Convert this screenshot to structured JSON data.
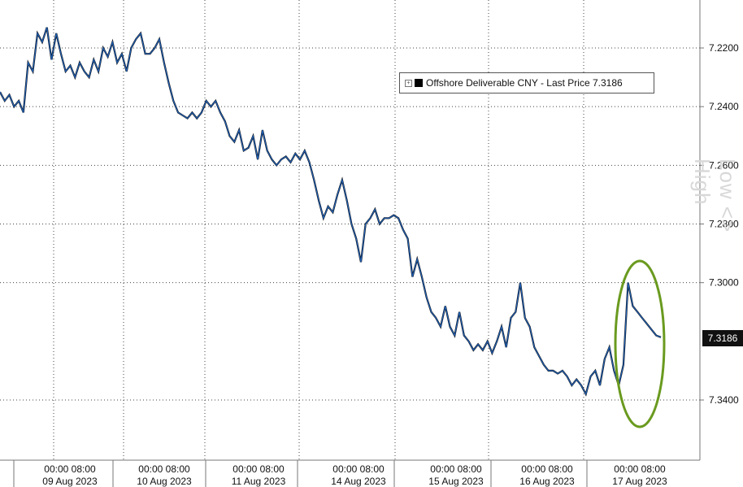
{
  "chart_data": {
    "type": "line",
    "title": "",
    "legend": {
      "label": "Offshore Deliverable CNY - Last Price 7.3186",
      "placement": "top-right"
    },
    "y_axis": {
      "side": "right",
      "inverted": true,
      "ylim": [
        7.2,
        7.36
      ],
      "ticks": [
        "7.2200",
        "7.2400",
        "7.2600",
        "7.2800",
        "7.3000",
        "7.3400"
      ]
    },
    "last_price_label": "7.3186",
    "x_axis": {
      "time_labels": [
        "00:00 08:00",
        "00:00 08:00",
        "00:00 08:00",
        "00:00 08:00",
        "00:00 08:00",
        "00:00 08:00",
        "00:00 08:00"
      ],
      "date_labels": [
        "09 Aug 2023",
        "10 Aug 2023",
        "11 Aug 2023",
        "14 Aug 2023",
        "15 Aug 2023",
        "16 Aug 2023",
        "17 Aug 2023"
      ]
    },
    "watermark": "Low <> High",
    "series": [
      {
        "name": "Offshore Deliverable CNY",
        "color": "#1f5fb4",
        "points": [
          [
            0.0,
            7.235
          ],
          [
            0.03,
            7.238
          ],
          [
            0.06,
            7.236
          ],
          [
            0.09,
            7.24
          ],
          [
            0.12,
            7.238
          ],
          [
            0.15,
            7.242
          ],
          [
            0.18,
            7.225
          ],
          [
            0.21,
            7.228
          ],
          [
            0.24,
            7.215
          ],
          [
            0.27,
            7.218
          ],
          [
            0.3,
            7.213
          ],
          [
            0.33,
            7.224
          ],
          [
            0.36,
            7.215
          ],
          [
            0.39,
            7.222
          ],
          [
            0.42,
            7.228
          ],
          [
            0.45,
            7.226
          ],
          [
            0.48,
            7.23
          ],
          [
            0.51,
            7.225
          ],
          [
            0.54,
            7.228
          ],
          [
            0.57,
            7.23
          ],
          [
            0.6,
            7.224
          ],
          [
            0.63,
            7.228
          ],
          [
            0.66,
            7.22
          ],
          [
            0.69,
            7.223
          ],
          [
            0.72,
            7.218
          ],
          [
            0.75,
            7.225
          ],
          [
            0.78,
            7.222
          ],
          [
            0.81,
            7.228
          ],
          [
            0.84,
            7.22
          ],
          [
            0.87,
            7.217
          ],
          [
            0.9,
            7.215
          ],
          [
            0.93,
            7.222
          ],
          [
            0.96,
            7.222
          ],
          [
            0.99,
            7.22
          ],
          [
            1.02,
            7.217
          ],
          [
            1.05,
            7.225
          ],
          [
            1.08,
            7.232
          ],
          [
            1.11,
            7.238
          ],
          [
            1.14,
            7.242
          ],
          [
            1.17,
            7.243
          ],
          [
            1.2,
            7.244
          ],
          [
            1.23,
            7.242
          ],
          [
            1.26,
            7.244
          ],
          [
            1.29,
            7.242
          ],
          [
            1.32,
            7.238
          ],
          [
            1.35,
            7.24
          ],
          [
            1.38,
            7.238
          ],
          [
            1.41,
            7.242
          ],
          [
            1.44,
            7.245
          ],
          [
            1.47,
            7.25
          ],
          [
            1.5,
            7.252
          ],
          [
            1.53,
            7.248
          ],
          [
            1.56,
            7.255
          ],
          [
            1.59,
            7.254
          ],
          [
            1.62,
            7.25
          ],
          [
            1.65,
            7.258
          ],
          [
            1.68,
            7.248
          ],
          [
            1.71,
            7.255
          ],
          [
            1.74,
            7.258
          ],
          [
            1.77,
            7.26
          ],
          [
            1.8,
            7.258
          ],
          [
            1.83,
            7.257
          ],
          [
            1.86,
            7.259
          ],
          [
            1.89,
            7.256
          ],
          [
            1.92,
            7.258
          ],
          [
            1.95,
            7.255
          ],
          [
            1.98,
            7.259
          ],
          [
            2.01,
            7.265
          ],
          [
            2.04,
            7.272
          ],
          [
            2.07,
            7.278
          ],
          [
            2.1,
            7.274
          ],
          [
            2.13,
            7.276
          ],
          [
            2.16,
            7.27
          ],
          [
            2.19,
            7.265
          ],
          [
            2.22,
            7.272
          ],
          [
            2.25,
            7.28
          ],
          [
            2.28,
            7.285
          ],
          [
            2.31,
            7.293
          ],
          [
            2.34,
            7.28
          ],
          [
            2.37,
            7.278
          ],
          [
            2.4,
            7.275
          ],
          [
            2.43,
            7.28
          ],
          [
            2.46,
            7.278
          ],
          [
            2.49,
            7.278
          ],
          [
            2.52,
            7.277
          ],
          [
            2.55,
            7.278
          ],
          [
            2.58,
            7.282
          ],
          [
            2.61,
            7.285
          ],
          [
            2.64,
            7.298
          ],
          [
            2.67,
            7.292
          ],
          [
            2.7,
            7.298
          ],
          [
            2.73,
            7.305
          ],
          [
            2.76,
            7.31
          ],
          [
            2.79,
            7.312
          ],
          [
            2.82,
            7.315
          ],
          [
            2.85,
            7.308
          ],
          [
            2.88,
            7.315
          ],
          [
            2.91,
            7.318
          ],
          [
            2.94,
            7.31
          ],
          [
            2.97,
            7.318
          ],
          [
            3.0,
            7.32
          ],
          [
            3.03,
            7.323
          ],
          [
            3.06,
            7.321
          ],
          [
            3.09,
            7.323
          ],
          [
            3.12,
            7.32
          ],
          [
            3.15,
            7.324
          ],
          [
            3.18,
            7.32
          ],
          [
            3.21,
            7.315
          ],
          [
            3.24,
            7.322
          ],
          [
            3.27,
            7.312
          ],
          [
            3.3,
            7.31
          ],
          [
            3.33,
            7.3
          ],
          [
            3.36,
            7.312
          ],
          [
            3.39,
            7.315
          ],
          [
            3.42,
            7.322
          ],
          [
            3.45,
            7.325
          ],
          [
            3.48,
            7.328
          ],
          [
            3.51,
            7.33
          ],
          [
            3.54,
            7.33
          ],
          [
            3.57,
            7.331
          ],
          [
            3.6,
            7.33
          ],
          [
            3.63,
            7.332
          ],
          [
            3.66,
            7.335
          ],
          [
            3.69,
            7.333
          ],
          [
            3.72,
            7.335
          ],
          [
            3.75,
            7.338
          ],
          [
            3.78,
            7.332
          ],
          [
            3.81,
            7.33
          ],
          [
            3.84,
            7.335
          ],
          [
            3.87,
            7.326
          ],
          [
            3.9,
            7.322
          ],
          [
            3.93,
            7.33
          ],
          [
            3.96,
            7.335
          ],
          [
            3.99,
            7.328
          ],
          [
            4.02,
            7.3
          ],
          [
            4.05,
            7.308
          ],
          [
            4.08,
            7.31
          ],
          [
            4.11,
            7.312
          ],
          [
            4.14,
            7.314
          ],
          [
            4.17,
            7.316
          ],
          [
            4.2,
            7.318
          ],
          [
            4.23,
            7.3186
          ]
        ]
      }
    ]
  }
}
